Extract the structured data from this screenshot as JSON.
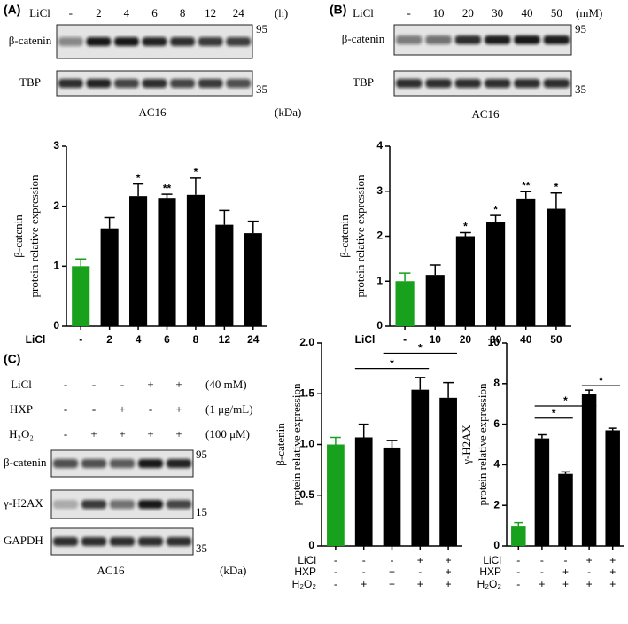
{
  "panels": [
    {
      "label": "(A)",
      "treatment_rows": [
        {
          "label": "LiCl",
          "values": [
            "-",
            "2",
            "4",
            "6",
            "8",
            "12",
            "24"
          ],
          "unit": "(h)"
        }
      ],
      "rows": [
        {
          "label": "β-catenin",
          "marker": "95"
        },
        {
          "label": "TBP",
          "marker": "35"
        }
      ],
      "cell_line": "AC16",
      "unit": "(kDa)"
    },
    {
      "label": "(B)",
      "treatment_rows": [
        {
          "label": "LiCl",
          "values": [
            "-",
            "10",
            "20",
            "30",
            "40",
            "50"
          ],
          "unit": "(mM)"
        }
      ],
      "rows": [
        {
          "label": "β-catenin",
          "marker": "95"
        },
        {
          "label": "TBP",
          "marker": "35"
        }
      ],
      "cell_line": "AC16"
    },
    {
      "label": "(C)",
      "treatment_rows": [
        {
          "label": "LiCl",
          "values": [
            "-",
            "-",
            "-",
            "+",
            "+"
          ],
          "unit": "(40 mM)"
        },
        {
          "label": "HXP",
          "values": [
            "-",
            "-",
            "+",
            "-",
            "+"
          ],
          "unit": "(1 μg/mL)"
        },
        {
          "label": "H₂O₂",
          "values": [
            "-",
            "+",
            "+",
            "+",
            "+"
          ],
          "unit": "(100 μM)"
        }
      ],
      "rows": [
        {
          "label": "β-catenin",
          "marker": "95"
        },
        {
          "label": "γ-H2AX",
          "marker": "15"
        },
        {
          "label": "GAPDH",
          "marker": "35"
        }
      ],
      "cell_line": "AC16",
      "unit": "(kDa)"
    }
  ],
  "chart_data": [
    {
      "type": "bar",
      "ylabel": [
        "β-catenin",
        "protein relative expression"
      ],
      "xlabel": "LiCl",
      "categories": [
        "-",
        "2",
        "4",
        "6",
        "8",
        "12",
        "24"
      ],
      "values": [
        1.0,
        1.63,
        2.17,
        2.14,
        2.19,
        1.69,
        1.55
      ],
      "errors": [
        0.12,
        0.18,
        0.2,
        0.06,
        0.28,
        0.24,
        0.2
      ],
      "colors": [
        "#18a11c",
        "#000000",
        "#000000",
        "#000000",
        "#000000",
        "#000000",
        "#000000"
      ],
      "ylim": [
        0,
        3
      ],
      "yticks": [
        0,
        1,
        2,
        3
      ],
      "annotations": [
        {
          "category": "4",
          "text": "*"
        },
        {
          "category": "6",
          "text": "**"
        },
        {
          "category": "8",
          "text": "*"
        }
      ]
    },
    {
      "type": "bar",
      "ylabel": [
        "β-catenin",
        "protein relative expression"
      ],
      "xlabel": "LiCl",
      "categories": [
        "-",
        "10",
        "20",
        "30",
        "40",
        "50"
      ],
      "values": [
        1.0,
        1.14,
        2.0,
        2.31,
        2.84,
        2.61
      ],
      "errors": [
        0.18,
        0.22,
        0.08,
        0.15,
        0.15,
        0.35
      ],
      "colors": [
        "#18a11c",
        "#000000",
        "#000000",
        "#000000",
        "#000000",
        "#000000"
      ],
      "ylim": [
        0,
        4
      ],
      "yticks": [
        0,
        1,
        2,
        3,
        4
      ],
      "annotations": [
        {
          "category": "20",
          "text": "*"
        },
        {
          "category": "30",
          "text": "*"
        },
        {
          "category": "40",
          "text": "**"
        },
        {
          "category": "50",
          "text": "*"
        }
      ]
    },
    {
      "type": "bar",
      "ylabel": [
        "β-catenin",
        "protein relative expression"
      ],
      "treatment_rows": [
        {
          "label": "LiCl",
          "values": [
            "-",
            "-",
            "-",
            "+",
            "+"
          ]
        },
        {
          "label": "HXP",
          "values": [
            "-",
            "-",
            "+",
            "-",
            "+"
          ]
        },
        {
          "label": "H₂O₂",
          "values": [
            "-",
            "+",
            "+",
            "+",
            "+"
          ]
        }
      ],
      "values": [
        1.0,
        1.07,
        0.97,
        1.54,
        1.46
      ],
      "errors": [
        0.07,
        0.13,
        0.07,
        0.12,
        0.15
      ],
      "colors": [
        "#18a11c",
        "#000000",
        "#000000",
        "#000000",
        "#000000"
      ],
      "ylim": [
        0,
        2
      ],
      "yticks": [
        0,
        0.5,
        {
          "value": 1,
          "label": "1.0"
        },
        1.5,
        {
          "value": 2,
          "label": "2.0"
        }
      ],
      "brackets": [
        {
          "from": 1,
          "to": 3,
          "y": 1.75,
          "text": "*"
        },
        {
          "from": 2,
          "to": 4,
          "y": 1.9,
          "text": "*"
        }
      ]
    },
    {
      "type": "bar",
      "ylabel": [
        "γ-H2AX",
        "protein relative expression"
      ],
      "treatment_rows": [
        {
          "label": "LiCl",
          "values": [
            "-",
            "-",
            "-",
            "+",
            "+"
          ]
        },
        {
          "label": "HXP",
          "values": [
            "-",
            "-",
            "+",
            "-",
            "+"
          ]
        },
        {
          "label": "H₂O₂",
          "values": [
            "-",
            "+",
            "+",
            "+",
            "+"
          ]
        }
      ],
      "values": [
        1.0,
        5.3,
        3.55,
        7.5,
        5.7
      ],
      "errors": [
        0.15,
        0.18,
        0.1,
        0.18,
        0.1
      ],
      "colors": [
        "#18a11c",
        "#000000",
        "#000000",
        "#000000",
        "#000000"
      ],
      "ylim": [
        0,
        10
      ],
      "yticks": [
        0,
        2,
        4,
        6,
        8,
        10
      ],
      "brackets": [
        {
          "from": 1,
          "to": 2,
          "y": 6.3,
          "text": "*"
        },
        {
          "from": 1,
          "to": 3,
          "y": 6.9,
          "text": "*"
        },
        {
          "from": 3,
          "to": 4,
          "y": 7.9,
          "text": "*"
        }
      ]
    }
  ]
}
